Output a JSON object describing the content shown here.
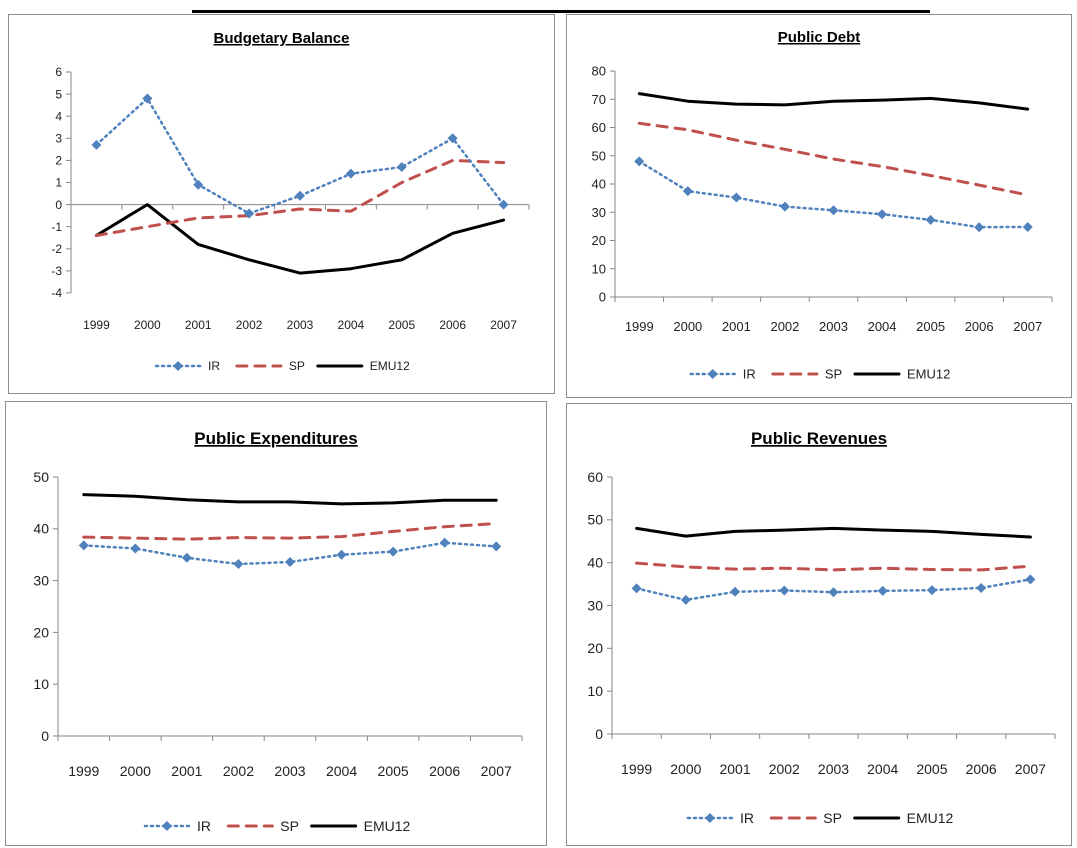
{
  "colors": {
    "IR": "#4f81bd",
    "SP": "#c0504d",
    "EMU12": "#000000",
    "axis": "#868686"
  },
  "legend": [
    "IR",
    "SP",
    "EMU12"
  ],
  "chart_data": [
    {
      "type": "line",
      "title": "Budgetary Balance",
      "x": [
        "1999",
        "2000",
        "2001",
        "2002",
        "2003",
        "2004",
        "2005",
        "2006",
        "2007"
      ],
      "ylim": [
        -4,
        6
      ],
      "yticks": [
        -4,
        -3,
        -2,
        -1,
        0,
        1,
        2,
        3,
        4,
        5,
        6
      ],
      "x_axis_at_zero": true,
      "series": [
        {
          "name": "IR",
          "values": [
            2.7,
            4.8,
            0.9,
            -0.4,
            0.4,
            1.4,
            1.7,
            3.0,
            0.0
          ]
        },
        {
          "name": "SP",
          "values": [
            -1.4,
            -1.0,
            -0.6,
            -0.5,
            -0.2,
            -0.3,
            1.0,
            2.0,
            1.9
          ]
        },
        {
          "name": "EMU12",
          "values": [
            -1.4,
            0.0,
            -1.8,
            -2.5,
            -3.1,
            -2.9,
            -2.5,
            -1.3,
            -0.7
          ]
        }
      ],
      "legend_position": "bottom"
    },
    {
      "type": "line",
      "title": "Public Debt",
      "x": [
        "1999",
        "2000",
        "2001",
        "2002",
        "2003",
        "2004",
        "2005",
        "2006",
        "2007"
      ],
      "ylim": [
        0,
        80
      ],
      "yticks": [
        0,
        10,
        20,
        30,
        40,
        50,
        60,
        70,
        80
      ],
      "series": [
        {
          "name": "IR",
          "values": [
            48.0,
            37.5,
            35.2,
            32.0,
            30.7,
            29.3,
            27.3,
            24.7,
            24.8
          ]
        },
        {
          "name": "SP",
          "values": [
            61.5,
            59.2,
            55.5,
            52.3,
            48.8,
            46.2,
            43.0,
            39.6,
            36.1
          ]
        },
        {
          "name": "EMU12",
          "values": [
            72.0,
            69.3,
            68.3,
            68.0,
            69.3,
            69.7,
            70.3,
            68.7,
            66.5
          ]
        }
      ],
      "legend_position": "bottom"
    },
    {
      "type": "line",
      "title": "Public Expenditures",
      "x": [
        "1999",
        "2000",
        "2001",
        "2002",
        "2003",
        "2004",
        "2005",
        "2006",
        "2007"
      ],
      "ylim": [
        0,
        50
      ],
      "yticks": [
        0,
        10,
        20,
        30,
        40,
        50
      ],
      "series": [
        {
          "name": "IR",
          "values": [
            36.8,
            36.2,
            34.4,
            33.2,
            33.6,
            35.0,
            35.6,
            37.3,
            36.6
          ]
        },
        {
          "name": "SP",
          "values": [
            38.4,
            38.2,
            38.0,
            38.3,
            38.2,
            38.5,
            39.5,
            40.4,
            41.0
          ]
        },
        {
          "name": "EMU12",
          "values": [
            46.6,
            46.3,
            45.6,
            45.2,
            45.2,
            44.8,
            45.0,
            45.5,
            45.5
          ]
        }
      ],
      "legend_position": "bottom"
    },
    {
      "type": "line",
      "title": "Public Revenues",
      "x": [
        "1999",
        "2000",
        "2001",
        "2002",
        "2003",
        "2004",
        "2005",
        "2006",
        "2007"
      ],
      "ylim": [
        0,
        60
      ],
      "yticks": [
        0,
        10,
        20,
        30,
        40,
        50,
        60
      ],
      "series": [
        {
          "name": "IR",
          "values": [
            34.0,
            31.3,
            33.2,
            33.5,
            33.1,
            33.4,
            33.6,
            34.1,
            36.1
          ]
        },
        {
          "name": "SP",
          "values": [
            39.9,
            39.0,
            38.5,
            38.7,
            38.3,
            38.7,
            38.4,
            38.3,
            39.2
          ]
        },
        {
          "name": "EMU12",
          "values": [
            48.0,
            46.2,
            47.3,
            47.6,
            48.0,
            47.6,
            47.3,
            46.6,
            46.0
          ]
        }
      ],
      "legend_position": "bottom"
    }
  ]
}
